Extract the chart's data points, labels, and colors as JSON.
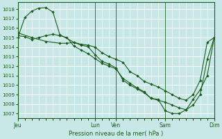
{
  "background_color": "#c8e8e8",
  "grid_color": "#ffffff",
  "line_color": "#1a5c1a",
  "marker": "D",
  "marker_size": 2.2,
  "xlabel": "Pression niveau de la mer( hPa )",
  "ylim": [
    1006.5,
    1018.7
  ],
  "yticks": [
    1007,
    1008,
    1009,
    1010,
    1011,
    1012,
    1013,
    1014,
    1015,
    1016,
    1017,
    1018
  ],
  "x_tick_labels": [
    "Jeu",
    "Lun",
    "Ven",
    "Sam",
    "Dim"
  ],
  "x_tick_positions": [
    0,
    11,
    14,
    21,
    28
  ],
  "num_points": 29,
  "xlim": [
    0,
    28
  ],
  "series1_x": [
    0,
    1,
    2,
    3,
    4,
    5,
    6,
    8,
    9,
    10,
    11,
    12,
    13,
    14,
    15,
    16,
    17,
    18,
    19,
    20,
    21,
    22,
    23,
    24,
    25,
    26,
    27,
    28
  ],
  "series1_y": [
    1015.0,
    1017.1,
    1017.8,
    1018.1,
    1018.15,
    1017.7,
    1015.3,
    1014.5,
    1014.2,
    1014.05,
    1013.2,
    1012.5,
    1012.2,
    1011.8,
    1010.5,
    1010.0,
    1009.6,
    1009.2,
    1008.6,
    1008.5,
    1007.3,
    1007.0,
    1007.0,
    1007.4,
    1008.5,
    1009.5,
    1011.0,
    1015.0
  ],
  "series2_x": [
    0,
    2,
    4,
    6,
    7,
    8,
    9,
    10,
    11,
    12,
    13,
    14,
    15,
    16,
    17,
    18,
    19,
    20,
    21,
    22,
    23,
    24,
    25,
    26,
    27,
    28
  ],
  "series2_y": [
    1015.5,
    1015.0,
    1014.6,
    1014.4,
    1014.4,
    1014.5,
    1014.3,
    1014.2,
    1014.0,
    1013.4,
    1013.0,
    1012.7,
    1012.4,
    1011.4,
    1011.0,
    1010.4,
    1010.1,
    1009.8,
    1009.4,
    1009.0,
    1008.6,
    1008.4,
    1009.0,
    1010.5,
    1014.5,
    1015.0
  ],
  "series3_x": [
    0,
    1,
    2,
    3,
    4,
    5,
    6,
    7,
    8,
    9,
    10,
    11,
    12,
    13,
    14,
    15,
    16,
    17,
    18,
    19,
    20,
    21,
    22,
    23,
    24,
    25,
    26,
    27,
    28
  ],
  "series3_y": [
    1015.2,
    1015.1,
    1014.8,
    1015.0,
    1015.2,
    1015.35,
    1015.2,
    1015.0,
    1014.1,
    1013.7,
    1013.3,
    1012.8,
    1012.3,
    1012.0,
    1011.7,
    1010.7,
    1010.2,
    1009.7,
    1009.3,
    1008.6,
    1008.4,
    1008.2,
    1007.9,
    1007.6,
    1007.4,
    1007.9,
    1009.0,
    1012.7,
    1015.0
  ]
}
